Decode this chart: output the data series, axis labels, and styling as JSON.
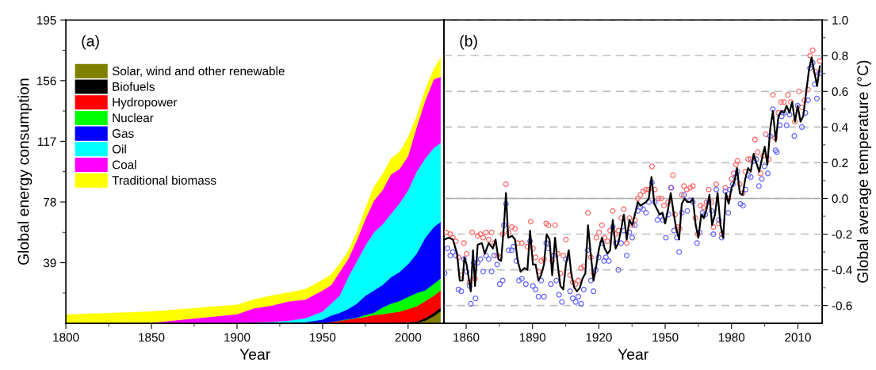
{
  "chart_data": [
    {
      "type": "area",
      "stacked": true,
      "xlabel": "Year",
      "ylabel": "Global energy consumption",
      "annotations": [
        "(a)"
      ],
      "legend": "top left",
      "grid": false,
      "x": [
        1800,
        1850,
        1900,
        1910,
        1920,
        1930,
        1940,
        1950,
        1955,
        1960,
        1965,
        1970,
        1975,
        1980,
        1985,
        1990,
        1995,
        2000,
        2005,
        2010,
        2015,
        2019
      ],
      "xlim": [
        1800,
        2021
      ],
      "xticks": [
        1800,
        {
          "value": 1825,
          "label": null
        },
        1850,
        {
          "value": 1875,
          "label": null
        },
        1900,
        {
          "value": 1925,
          "label": null
        },
        1950,
        {
          "value": 1975,
          "label": null
        },
        2000
      ],
      "ylim": [
        0,
        195
      ],
      "yticks": [
        {
          "value": 19.5,
          "label": null
        },
        39,
        {
          "value": 58.5,
          "label": null
        },
        78,
        {
          "value": 97.5,
          "label": null
        },
        117,
        {
          "value": 136.5,
          "label": null
        },
        156,
        {
          "value": 175.5,
          "label": null
        },
        195
      ],
      "series": [
        {
          "name": "Solar, wind and other renewable",
          "color": "#808000",
          "values": [
            0,
            0,
            0,
            0,
            0,
            0,
            0,
            0,
            0,
            0,
            0,
            0,
            0,
            0,
            0,
            0.1,
            0.1,
            0.3,
            0.4,
            1.7,
            4.6,
            7.7
          ]
        },
        {
          "name": "Biofuels",
          "color": "#000000",
          "values": [
            0,
            0,
            0,
            0,
            0,
            0,
            0,
            0,
            0,
            0,
            0,
            0,
            0,
            0,
            0,
            0.3,
            0.5,
            0.5,
            0.8,
            1.7,
            2.2,
            2.5
          ]
        },
        {
          "name": "Hydropower",
          "color": "#ff0000",
          "values": [
            0,
            0,
            0,
            0,
            0.1,
            0.2,
            0.3,
            0.5,
            1.0,
            1.7,
            2.5,
            3.4,
            4.2,
            5.4,
            5.9,
            6.4,
            7.0,
            8.5,
            9.8,
            11.0,
            11.0,
            11.0
          ]
        },
        {
          "name": "Nuclear",
          "color": "#00ff00",
          "values": [
            0,
            0,
            0,
            0,
            0,
            0,
            0,
            0,
            0,
            0.1,
            0.2,
            0.3,
            1.2,
            1.4,
            4.3,
            5.9,
            6.8,
            7.7,
            8.5,
            6.8,
            7.6,
            7.6
          ]
        },
        {
          "name": "Gas",
          "color": "#0000ff",
          "values": [
            0,
            0,
            0,
            0.2,
            0.3,
            0.4,
            0.5,
            2.0,
            4.1,
            5.0,
            6.6,
            9.0,
            12.4,
            14.4,
            14.4,
            17.0,
            18.6,
            21.2,
            25.4,
            33.9,
            36.5,
            36.5
          ]
        },
        {
          "name": "Oil",
          "color": "#00ffff",
          "values": [
            0,
            0,
            0.3,
            0.4,
            0.6,
            1.1,
            2.6,
            5.1,
            7.6,
            11.0,
            20.4,
            27.1,
            32.2,
            37.3,
            39.0,
            40.7,
            44.2,
            47.4,
            52.6,
            50.9,
            50.9,
            50.7
          ]
        },
        {
          "name": "Coal",
          "color": "#ff00ff",
          "values": [
            0,
            0.5,
            5.6,
            9.1,
            10.4,
            12.4,
            11.9,
            13.6,
            11.9,
            15.2,
            11.8,
            13.6,
            17.0,
            20.4,
            22.0,
            25.4,
            22.0,
            22.1,
            28.8,
            37.3,
            44.1,
            42.5
          ]
        },
        {
          "name": "Traditional biomass",
          "color": "#ffff00",
          "values": [
            5.6,
            7.1,
            6.0,
            5.6,
            6.4,
            5.7,
            6.7,
            6.8,
            6.8,
            5.2,
            5.1,
            5.1,
            6.8,
            8.8,
            10.2,
            10.2,
            11.0,
            11.9,
            6.8,
            6.8,
            6.7,
            12.0
          ]
        }
      ]
    },
    {
      "type": "line",
      "xlabel": "Year",
      "y2label": "Global average temperature (°C)",
      "annotations": [
        "(b)"
      ],
      "grid": "y",
      "legend": false,
      "xlim": [
        1850,
        2021
      ],
      "xticks": [
        1860,
        {
          "value": 1875,
          "label": null
        },
        1890,
        {
          "value": 1905,
          "label": null
        },
        1920,
        {
          "value": 1935,
          "label": null
        },
        1950,
        {
          "value": 1965,
          "label": null
        },
        1980,
        {
          "value": 1995,
          "label": null
        },
        2010
      ],
      "y2lim": [
        -0.7,
        1.0
      ],
      "y2ticks": [
        -0.6,
        {
          "value": -0.5,
          "label": null
        },
        -0.4,
        {
          "value": -0.3,
          "label": null
        },
        -0.2,
        {
          "value": -0.1,
          "label": null
        },
        {
          "value": 0,
          "label": "0.0"
        },
        {
          "value": 0.1,
          "label": null
        },
        0.2,
        {
          "value": 0.3,
          "label": null
        },
        0.4,
        {
          "value": 0.5,
          "label": null
        },
        0.6,
        {
          "value": 0.7,
          "label": null
        },
        0.8,
        {
          "value": 0.9,
          "label": null
        },
        {
          "value": 1,
          "label": "1.0"
        }
      ],
      "ref_lines": [
        {
          "axis": "y2",
          "value": 0,
          "color": "#b0b0b0"
        }
      ],
      "series": [
        {
          "type": "scatter",
          "axis": "y2",
          "marker": "circle",
          "color": "#ff6666",
          "x": [
            1850.9,
            1852.8,
            1854.0,
            1855.3,
            1856.5,
            1857.8,
            1859.0,
            1860.2,
            1861.5,
            1862.7,
            1864.0,
            1865.2,
            1866.5,
            1867.7,
            1869.0,
            1870.2,
            1871.5,
            1872.7,
            1874.0,
            1875.2,
            1876.5,
            1878.0,
            1879.2,
            1880.6,
            1882.1,
            1883.3,
            1885.2,
            1887.7,
            1889.2,
            1890.2,
            1891.4,
            1892.7,
            1893.9,
            1895.2,
            1896.2,
            1897.2,
            1898.9,
            1900.2,
            1901.4,
            1902.6,
            1903.9,
            1905.1,
            1907.0,
            1908.2,
            1909.5,
            1910.7,
            1912.0,
            1913.2,
            1915.1,
            1916.4,
            1917.6,
            1918.9,
            1920.1,
            1921.4,
            1922.6,
            1923.9,
            1925.1,
            1926.3,
            1927.6,
            1928.8,
            1930.1,
            1931.3,
            1932.6,
            1933.8,
            1935.1,
            1936.3,
            1937.6,
            1938.8,
            1940.1,
            1941.3,
            1942.6,
            1944.0,
            1945.3,
            1946.9,
            1948.2,
            1949.4,
            1951.3,
            1952.5,
            1953.5,
            1954.4,
            1955.6,
            1956.5,
            1957.5,
            1958.5,
            1959.8,
            1961.3,
            1962.5,
            1963.7,
            1964.7,
            1966.0,
            1967.2,
            1968.7,
            1969.7,
            1971.0,
            1971.8,
            1973.1,
            1974.3,
            1975.6,
            1977.2,
            1978.7,
            1980.0,
            1981.0,
            1982.0,
            1982.7,
            1983.7,
            1985.0,
            1986.2,
            1987.5,
            1988.7,
            1990.6,
            1991.8,
            1993.1,
            1994.3,
            1995.5,
            1996.8,
            1998.7,
            1999.7,
            2001.2,
            2002.4,
            2003.7,
            2005.5,
            2006.8,
            2008.6,
            2010.5,
            2011.8,
            2013.0,
            2014.6,
            2015.5,
            2016.7,
            2018.0,
            2019.9
          ],
          "values": [
            -0.19,
            -0.2,
            -0.22,
            -0.24,
            -0.33,
            -0.43,
            -0.25,
            -0.31,
            -0.47,
            -0.19,
            -0.45,
            -0.21,
            -0.2,
            -0.22,
            -0.19,
            -0.23,
            -0.19,
            -0.25,
            -0.32,
            -0.33,
            -0.2,
            0.08,
            -0.19,
            -0.16,
            -0.17,
            -0.25,
            -0.25,
            -0.27,
            -0.13,
            -0.28,
            -0.33,
            -0.41,
            -0.35,
            -0.34,
            -0.14,
            -0.15,
            -0.35,
            -0.15,
            -0.31,
            -0.42,
            -0.32,
            -0.23,
            -0.43,
            -0.47,
            -0.48,
            -0.46,
            -0.39,
            -0.38,
            -0.08,
            -0.33,
            -0.42,
            -0.22,
            -0.19,
            -0.15,
            -0.22,
            -0.24,
            -0.18,
            -0.07,
            -0.2,
            -0.18,
            -0.11,
            -0.06,
            -0.25,
            -0.11,
            -0.15,
            -0.12,
            0.0,
            0.02,
            0.04,
            0.05,
            0.05,
            0.18,
            0.05,
            0.0,
            0.0,
            -0.04,
            -0.02,
            0.06,
            0.13,
            -0.09,
            -0.16,
            -0.17,
            0.02,
            0.07,
            0.05,
            0.06,
            0.07,
            -0.11,
            -0.2,
            -0.04,
            -0.05,
            -0.02,
            0.05,
            -0.02,
            -0.16,
            0.08,
            -0.14,
            -0.2,
            0.06,
            0.0,
            0.11,
            0.14,
            0.19,
            0.21,
            0.08,
            0.03,
            0.15,
            0.22,
            0.22,
            0.33,
            0.26,
            0.14,
            0.24,
            0.36,
            0.22,
            0.58,
            0.34,
            0.48,
            0.54,
            0.54,
            0.58,
            0.54,
            0.43,
            0.6,
            0.51,
            0.55,
            0.61,
            0.8,
            0.83,
            0.71,
            0.77
          ]
        },
        {
          "type": "scatter",
          "axis": "y2",
          "marker": "circle",
          "color": "#6666ff",
          "x": [
            1850.3,
            1851.5,
            1852.8,
            1854.0,
            1855.3,
            1856.5,
            1857.8,
            1859.0,
            1860.2,
            1861.5,
            1862.1,
            1863.4,
            1864.2,
            1865.2,
            1866.5,
            1867.7,
            1869.0,
            1870.2,
            1871.5,
            1872.7,
            1874.0,
            1875.2,
            1876.5,
            1877.1,
            1878.0,
            1879.2,
            1880.6,
            1881.4,
            1882.7,
            1883.9,
            1885.2,
            1887.0,
            1888.9,
            1890.2,
            1891.4,
            1892.7,
            1893.9,
            1895.2,
            1896.2,
            1897.2,
            1898.3,
            1899.5,
            1900.8,
            1902.0,
            1903.3,
            1905.1,
            1907.0,
            1908.2,
            1909.5,
            1910.7,
            1912.0,
            1913.2,
            1914.9,
            1916.4,
            1917.6,
            1918.6,
            1919.9,
            1921.4,
            1922.4,
            1923.2,
            1924.5,
            1926.3,
            1927.6,
            1928.8,
            1930.1,
            1931.3,
            1932.6,
            1933.8,
            1935.1,
            1936.3,
            1937.6,
            1938.8,
            1940.1,
            1941.3,
            1942.6,
            1944.0,
            1945.3,
            1946.5,
            1947.8,
            1949.0,
            1950.3,
            1951.5,
            1952.8,
            1954.0,
            1955.3,
            1956.3,
            1957.5,
            1958.5,
            1960.0,
            1961.3,
            1962.5,
            1964.4,
            1965.6,
            1966.9,
            1968.1,
            1969.7,
            1971.0,
            1971.8,
            1973.1,
            1974.3,
            1975.6,
            1977.2,
            1978.5,
            1979.3,
            1980.6,
            1981.8,
            1982.7,
            1984.0,
            1985.2,
            1986.4,
            1987.5,
            1988.7,
            1990.0,
            1991.2,
            1992.4,
            1993.7,
            1994.9,
            1996.4,
            1997.4,
            1998.7,
            1999.9,
            2000.5,
            2001.8,
            2002.7,
            2003.7,
            2004.9,
            2006.2,
            2008.4,
            2009.9,
            2011.8,
            2013.4,
            2014.6,
            2015.5,
            2016.7,
            2017.6,
            2018.6,
            2019.6
          ],
          "values": [
            -0.42,
            -0.28,
            -0.32,
            -0.3,
            -0.32,
            -0.51,
            -0.52,
            -0.34,
            -0.41,
            -0.49,
            -0.59,
            -0.36,
            -0.56,
            -0.36,
            -0.34,
            -0.41,
            -0.32,
            -0.34,
            -0.41,
            -0.32,
            -0.37,
            -0.48,
            -0.46,
            -0.15,
            -0.03,
            -0.29,
            -0.29,
            -0.27,
            -0.35,
            -0.46,
            -0.45,
            -0.48,
            -0.24,
            -0.49,
            -0.51,
            -0.55,
            -0.46,
            -0.55,
            -0.25,
            -0.28,
            -0.48,
            -0.32,
            -0.46,
            -0.54,
            -0.58,
            -0.34,
            -0.52,
            -0.56,
            -0.58,
            -0.55,
            -0.59,
            -0.51,
            -0.29,
            -0.46,
            -0.52,
            -0.4,
            -0.33,
            -0.25,
            -0.35,
            -0.33,
            -0.35,
            -0.16,
            -0.25,
            -0.4,
            -0.25,
            -0.18,
            -0.32,
            -0.19,
            -0.22,
            -0.15,
            -0.07,
            -0.05,
            -0.06,
            -0.08,
            -0.02,
            0.09,
            -0.02,
            -0.12,
            -0.1,
            -0.12,
            -0.22,
            -0.09,
            0.06,
            -0.18,
            -0.22,
            -0.3,
            -0.08,
            0.02,
            -0.07,
            -0.01,
            -0.02,
            -0.25,
            -0.19,
            -0.08,
            -0.09,
            -0.02,
            -0.07,
            -0.2,
            0.05,
            -0.12,
            -0.22,
            0.04,
            -0.08,
            0.05,
            0.08,
            0.12,
            0.15,
            -0.03,
            -0.04,
            0.05,
            0.13,
            0.12,
            0.21,
            0.22,
            0.07,
            0.11,
            0.18,
            0.14,
            0.35,
            0.5,
            0.27,
            0.26,
            0.41,
            0.46,
            0.48,
            0.41,
            0.47,
            0.35,
            0.52,
            0.4,
            0.48,
            0.55,
            0.73,
            0.76,
            0.64,
            0.56,
            0.7
          ]
        },
        {
          "type": "line",
          "axis": "y2",
          "marker": "none",
          "line_style": "solid",
          "color": "#000000",
          "x": [
            1850.3,
            1852.1,
            1854.0,
            1855.9,
            1857.1,
            1858.4,
            1859.2,
            1860.2,
            1862.1,
            1863.1,
            1864.0,
            1865.2,
            1867.1,
            1868.4,
            1870.2,
            1872.1,
            1873.3,
            1874.6,
            1875.8,
            1877.1,
            1878.0,
            1879.0,
            1880.8,
            1882.1,
            1883.3,
            1884.6,
            1886.4,
            1887.7,
            1888.9,
            1890.2,
            1891.4,
            1892.7,
            1893.9,
            1895.2,
            1896.4,
            1897.7,
            1898.9,
            1900.2,
            1901.4,
            1902.6,
            1903.9,
            1905.1,
            1906.4,
            1907.6,
            1908.9,
            1910.1,
            1911.4,
            1912.6,
            1913.9,
            1915.1,
            1916.4,
            1917.6,
            1918.9,
            1920.1,
            1921.4,
            1922.6,
            1923.9,
            1925.1,
            1926.3,
            1927.6,
            1928.8,
            1930.1,
            1931.3,
            1932.6,
            1933.8,
            1935.1,
            1936.3,
            1937.6,
            1938.8,
            1940.1,
            1941.3,
            1942.6,
            1943.8,
            1945.1,
            1946.3,
            1947.5,
            1948.8,
            1950.0,
            1951.3,
            1952.5,
            1953.8,
            1955.0,
            1956.3,
            1957.5,
            1958.8,
            1960.0,
            1961.3,
            1962.5,
            1963.8,
            1965.0,
            1966.3,
            1967.5,
            1968.7,
            1970.0,
            1971.2,
            1972.5,
            1973.7,
            1975.0,
            1976.2,
            1977.5,
            1978.7,
            1980.0,
            1981.2,
            1982.5,
            1983.7,
            1985.0,
            1986.2,
            1987.5,
            1988.7,
            1990.0,
            1991.2,
            1992.5,
            1993.7,
            1995.0,
            1996.2,
            1997.5,
            1998.7,
            2000.0,
            2001.2,
            2002.5,
            2003.7,
            2004.9,
            2006.2,
            2007.4,
            2008.7,
            2009.9,
            2011.2,
            2012.4,
            2013.7,
            2014.9,
            2016.2,
            2017.4,
            2018.7,
            2019.9
          ],
          "values": [
            -0.23,
            -0.22,
            -0.23,
            -0.31,
            -0.46,
            -0.46,
            -0.33,
            -0.37,
            -0.52,
            -0.29,
            -0.49,
            -0.26,
            -0.25,
            -0.31,
            -0.25,
            -0.28,
            -0.23,
            -0.34,
            -0.35,
            -0.15,
            0.03,
            -0.22,
            -0.21,
            -0.23,
            -0.35,
            -0.41,
            -0.39,
            -0.4,
            -0.18,
            -0.37,
            -0.37,
            -0.46,
            -0.43,
            -0.37,
            -0.2,
            -0.23,
            -0.43,
            -0.22,
            -0.37,
            -0.49,
            -0.51,
            -0.37,
            -0.29,
            -0.43,
            -0.5,
            -0.52,
            -0.5,
            -0.45,
            -0.42,
            -0.15,
            -0.32,
            -0.46,
            -0.37,
            -0.28,
            -0.22,
            -0.28,
            -0.31,
            -0.29,
            -0.12,
            -0.28,
            -0.25,
            -0.17,
            -0.09,
            -0.23,
            -0.12,
            -0.15,
            -0.09,
            -0.02,
            -0.04,
            -0.03,
            -0.02,
            0.0,
            0.12,
            -0.03,
            -0.06,
            -0.09,
            -0.08,
            -0.14,
            -0.06,
            0.03,
            -0.08,
            -0.17,
            -0.23,
            -0.03,
            0.0,
            -0.02,
            -0.02,
            0.0,
            -0.15,
            -0.22,
            -0.09,
            -0.11,
            -0.06,
            0.02,
            -0.15,
            -0.09,
            0.03,
            -0.15,
            -0.22,
            0.03,
            -0.03,
            0.06,
            0.09,
            0.17,
            0.03,
            0.02,
            0.11,
            0.17,
            0.15,
            0.25,
            0.2,
            0.15,
            0.22,
            0.29,
            0.19,
            0.39,
            0.49,
            0.32,
            0.46,
            0.49,
            0.48,
            0.52,
            0.48,
            0.54,
            0.43,
            0.52,
            0.43,
            0.46,
            0.59,
            0.71,
            0.79,
            0.71,
            0.63,
            0.74
          ]
        }
      ]
    }
  ]
}
